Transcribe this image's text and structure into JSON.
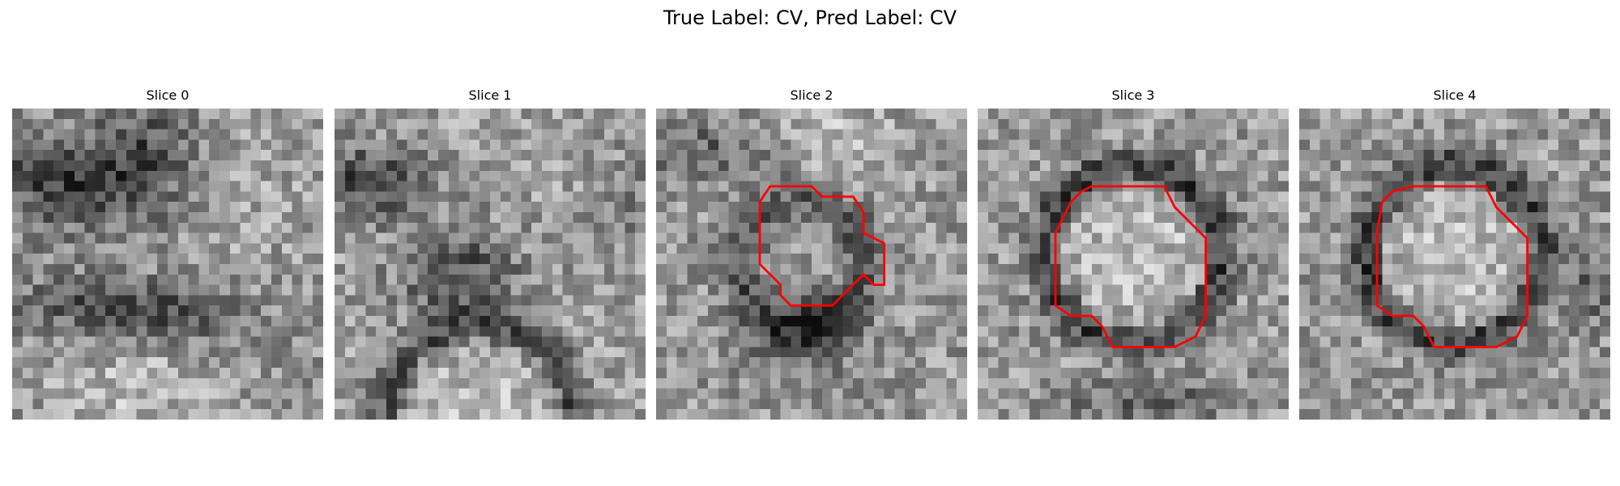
{
  "figure": {
    "title": "True Label: CV, Pred Label: CV"
  },
  "panels": [
    {
      "title": "Slice 0",
      "has_contour": false
    },
    {
      "title": "Slice 1",
      "has_contour": false
    },
    {
      "title": "Slice 2",
      "has_contour": true
    },
    {
      "title": "Slice 3",
      "has_contour": true
    },
    {
      "title": "Slice 4",
      "has_contour": true
    }
  ],
  "image": {
    "grid_size": 30,
    "colormap": "grayscale"
  },
  "colors": {
    "contour": "#ff0000",
    "background": "#ffffff"
  }
}
